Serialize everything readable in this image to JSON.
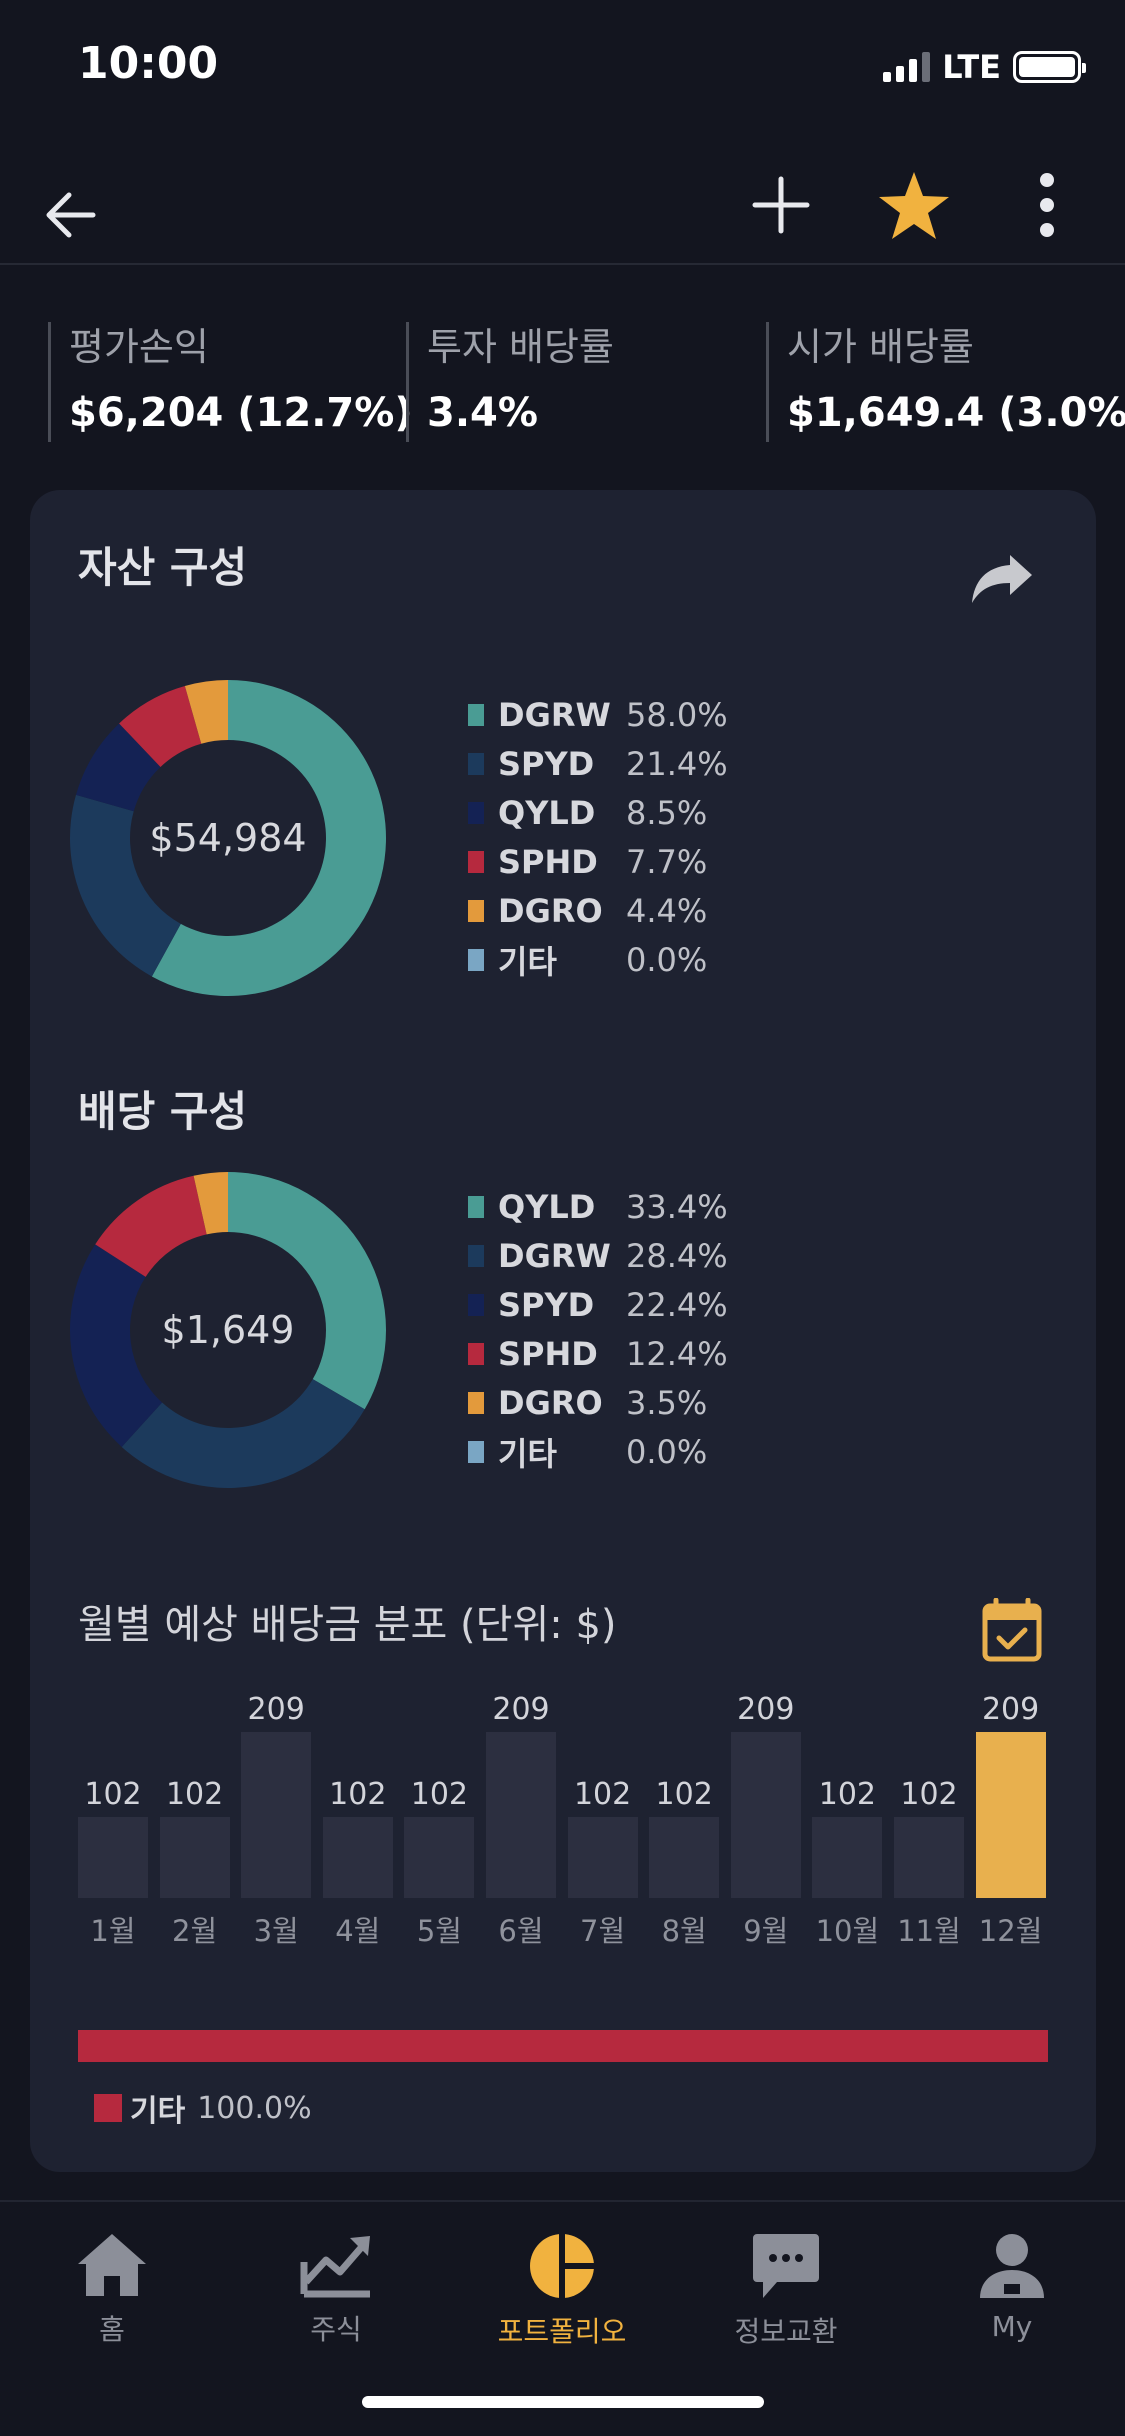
{
  "status_bar": {
    "time": "10:00",
    "network": "LTE"
  },
  "summary": [
    {
      "label": "평가손익",
      "value": "$6,204 (12.7%)"
    },
    {
      "label": "투자 배당률",
      "value": "3.4%"
    },
    {
      "label": "시가 배당률",
      "value": "$1,649.4 (3.0%)"
    }
  ],
  "asset_allocation": {
    "title": "자산 구성",
    "center_value": "$54,984",
    "items": [
      {
        "name": "DGRW",
        "pct": "58.0%",
        "value": 58.0,
        "color": "#4a9c94"
      },
      {
        "name": "SPYD",
        "pct": "21.4%",
        "value": 21.4,
        "color": "#1c3a5c"
      },
      {
        "name": "QYLD",
        "pct": "8.5%",
        "value": 8.5,
        "color": "#142254"
      },
      {
        "name": "SPHD",
        "pct": "7.7%",
        "value": 7.7,
        "color": "#b6293e"
      },
      {
        "name": "DGRO",
        "pct": "4.4%",
        "value": 4.4,
        "color": "#e39a3c"
      },
      {
        "name": "기타",
        "pct": "0.0%",
        "value": 0.0,
        "color": "#7aa6c4"
      }
    ]
  },
  "dividend_allocation": {
    "title": "배당 구성",
    "center_value": "$1,649",
    "items": [
      {
        "name": "QYLD",
        "pct": "33.4%",
        "value": 33.4,
        "color": "#4a9c94"
      },
      {
        "name": "DGRW",
        "pct": "28.4%",
        "value": 28.4,
        "color": "#1c3a5c"
      },
      {
        "name": "SPYD",
        "pct": "22.4%",
        "value": 22.4,
        "color": "#142254"
      },
      {
        "name": "SPHD",
        "pct": "12.4%",
        "value": 12.4,
        "color": "#b6293e"
      },
      {
        "name": "DGRO",
        "pct": "3.5%",
        "value": 3.5,
        "color": "#e39a3c"
      },
      {
        "name": "기타",
        "pct": "0.0%",
        "value": 0.0,
        "color": "#7aa6c4"
      }
    ]
  },
  "monthly": {
    "title": "월별 예상 배당금 분포 (단위: $)",
    "active_month_index": 11,
    "active_color": "#e8b04e",
    "stack_legend": {
      "name": "기타",
      "pct": "100.0%",
      "color": "#b6293e"
    }
  },
  "chart_data": {
    "type": "bar",
    "categories": [
      "1월",
      "2월",
      "3월",
      "4월",
      "5월",
      "6월",
      "7월",
      "8월",
      "9월",
      "10월",
      "11월",
      "12월"
    ],
    "values": [
      102,
      102,
      209,
      102,
      102,
      209,
      102,
      102,
      209,
      102,
      102,
      209
    ],
    "title": "월별 예상 배당금 분포 (단위: $)",
    "ylim": [
      0,
      209
    ]
  },
  "tabs": [
    {
      "label": "홈",
      "icon": "home-icon"
    },
    {
      "label": "주식",
      "icon": "chart-trend-icon"
    },
    {
      "label": "포트폴리오",
      "icon": "pie-chart-icon",
      "active": true
    },
    {
      "label": "정보교환",
      "icon": "chat-icon"
    },
    {
      "label": "My",
      "icon": "user-icon"
    }
  ],
  "colors": {
    "accent": "#f1b23f",
    "background": "#13151f",
    "card": "#1e2231"
  }
}
